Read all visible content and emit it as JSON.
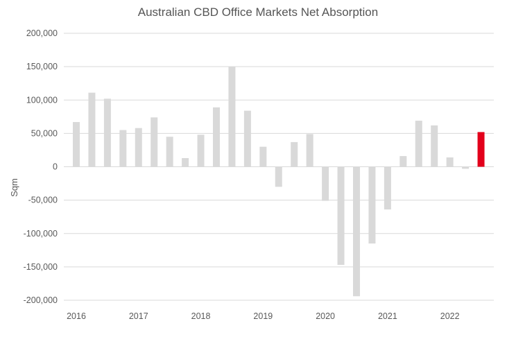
{
  "chart_data": {
    "type": "bar",
    "title": "Australian CBD Office Markets Net Absorption",
    "ylabel": "Sqm",
    "xlabel": "",
    "ylim": [
      -200000,
      200000
    ],
    "yticks": [
      200000,
      150000,
      100000,
      50000,
      0,
      -50000,
      -100000,
      -150000,
      -200000
    ],
    "ytick_labels": [
      "200,000",
      "150,000",
      "100,000",
      "50,000",
      "0",
      "-50,000",
      "-100,000",
      "-150,000",
      "-200,000"
    ],
    "xtick_labels": [
      "2016",
      "2017",
      "2018",
      "2019",
      "2020",
      "2021",
      "2022"
    ],
    "grid": true,
    "legend": "none",
    "colors": {
      "default_bar": "#d9d9d9",
      "highlight_bar": "#e3001b",
      "grid": "#d9d9d9",
      "text": "#595959"
    },
    "series": [
      {
        "values": [
          67000,
          111000,
          102000,
          55000,
          58000,
          74000,
          45000,
          13000,
          48000,
          89000,
          150000,
          84000,
          30000,
          -30000,
          37000,
          49000,
          -51000,
          -147000,
          -194000,
          -115000,
          -64000,
          16000,
          69000,
          62000,
          14000,
          -3000,
          52000
        ],
        "highlight_index": 26
      }
    ]
  }
}
